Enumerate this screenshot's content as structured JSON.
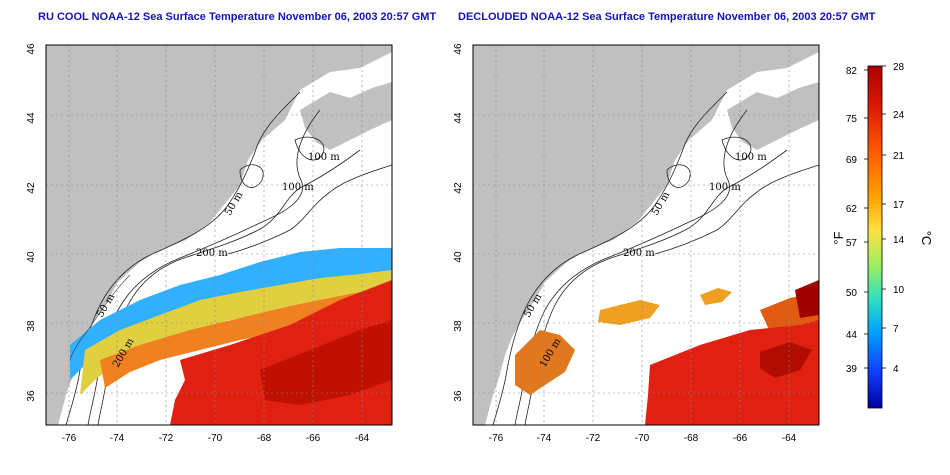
{
  "panels": [
    {
      "title": "RU COOL NOAA-12 Sea Surface Temperature November 06, 2003 20:57 GMT",
      "contour_labels": [
        "100 m",
        "100 m",
        "50 m",
        "200 m",
        "50 m",
        "200 m"
      ]
    },
    {
      "title": "DECLOUDED NOAA-12 Sea Surface Temperature November 06, 2003 20:57 GMT",
      "contour_labels": [
        "100 m",
        "100 m",
        "50 m",
        "200 m",
        "50 m",
        "100 m"
      ]
    }
  ],
  "axes": {
    "x_ticks": [
      "-76",
      "-74",
      "-72",
      "-70",
      "-68",
      "-66",
      "-64"
    ],
    "y_ticks": [
      "46",
      "44",
      "42",
      "40",
      "38",
      "36"
    ]
  },
  "colorbar": {
    "f_label": "°F",
    "c_label": "°C",
    "f_ticks": [
      "82",
      "75",
      "69",
      "62",
      "57",
      "50",
      "44",
      "39"
    ],
    "c_ticks": [
      "28",
      "24",
      "21",
      "17",
      "14",
      "10",
      "7",
      "4"
    ],
    "colors": [
      "#aa0000",
      "#dd1a00",
      "#ff5a00",
      "#ffa000",
      "#ffe040",
      "#a0f060",
      "#30e0c0",
      "#00a0ff",
      "#1040ff",
      "#0000a0"
    ]
  },
  "colors": {
    "land": "#c0c0c0",
    "title": "#1414b4"
  }
}
